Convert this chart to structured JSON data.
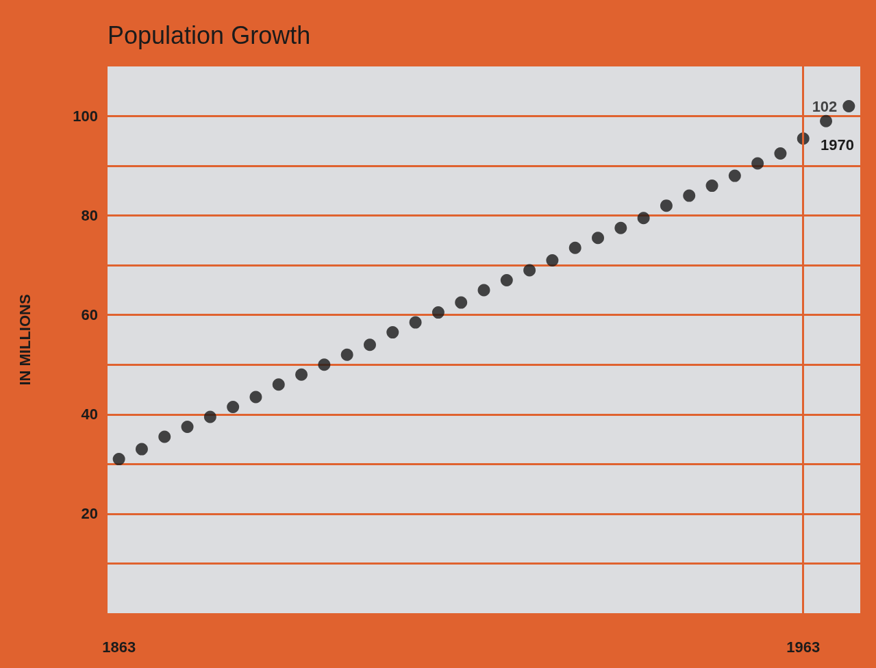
{
  "chart_data": {
    "type": "scatter",
    "title": "Population Growth",
    "ylabel": "IN MILLIONS",
    "categories": [
      "1863",
      null,
      null,
      null,
      null,
      null,
      null,
      null,
      null,
      null,
      null,
      null,
      null,
      null,
      null,
      null,
      null,
      null,
      null,
      null,
      null,
      null,
      null,
      null,
      null,
      null,
      null,
      null,
      null,
      null,
      "1963",
      null,
      null
    ],
    "series": [
      {
        "color": "#1a1a1a",
        "values": [
          31,
          33,
          35.5,
          37.5,
          39.5,
          41.5,
          43.5,
          46,
          48,
          50,
          52,
          54,
          56.5,
          58.5,
          60.5,
          62.5,
          65,
          67,
          69,
          71,
          73.5,
          75.5,
          77.5,
          79.5,
          82,
          84,
          86,
          88,
          90.5,
          92.5,
          95.5,
          99,
          102
        ],
        "value_labels": [
          null,
          null,
          null,
          null,
          null,
          null,
          null,
          null,
          null,
          null,
          null,
          null,
          null,
          null,
          null,
          null,
          null,
          null,
          null,
          null,
          null,
          null,
          null,
          null,
          null,
          null,
          null,
          null,
          null,
          null,
          null,
          null,
          "102"
        ]
      }
    ],
    "annotations": [
      "1970"
    ],
    "ylim": [
      0,
      110
    ],
    "yticks": [
      {
        "value": 10,
        "label": null
      },
      20,
      {
        "value": 30,
        "label": null
      },
      40,
      {
        "value": 50,
        "label": null
      },
      60,
      {
        "value": 70,
        "label": null
      },
      80,
      {
        "value": 90,
        "label": null
      },
      100
    ],
    "ref_lines": [
      {
        "axis": "x",
        "value": "1963",
        "color": "#e0622f"
      }
    ],
    "grid": "y",
    "marker": "circle"
  }
}
